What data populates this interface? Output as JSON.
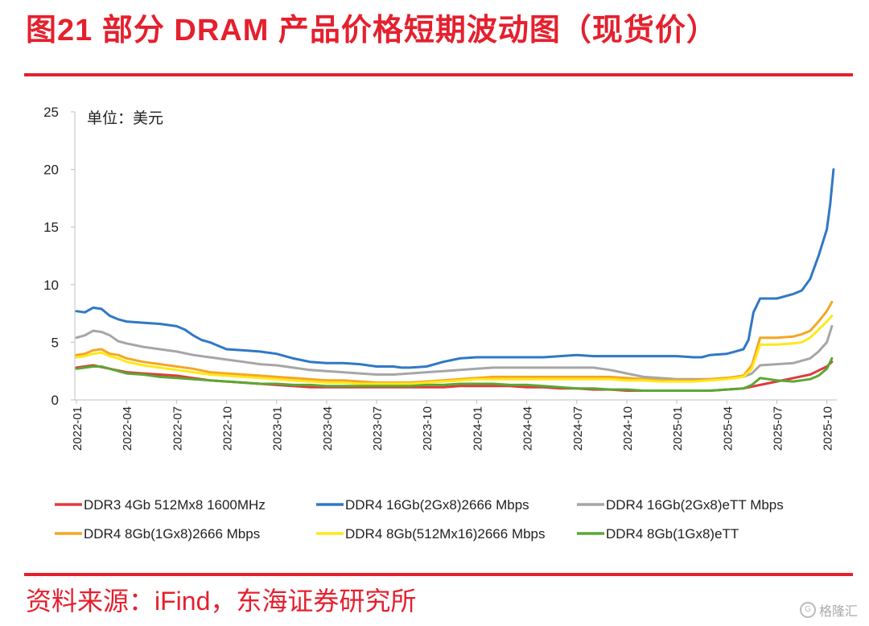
{
  "header": {
    "title": "图21  部分 DRAM 产品价格短期波动图（现货价）"
  },
  "footer": {
    "source": "资料来源：iFind，东海证券研究所",
    "watermark": "格隆汇"
  },
  "chart_data": {
    "type": "line",
    "unit_label": "单位：美元",
    "ylim": [
      0,
      25
    ],
    "yticks": [
      0,
      5,
      10,
      15,
      20,
      25
    ],
    "xlim": [
      0,
      45.5
    ],
    "xtick_labels": [
      "2022-01",
      "2022-04",
      "2022-07",
      "2022-10",
      "2023-01",
      "2023-04",
      "2023-07",
      "2023-10",
      "2024-01",
      "2024-04",
      "2024-07",
      "2024-10",
      "2025-01",
      "2025-04",
      "2025-07",
      "2025-10"
    ],
    "xtick_positions": [
      0,
      3,
      6,
      9,
      12,
      15,
      18,
      21,
      24,
      27,
      30,
      33,
      36,
      39,
      42,
      45
    ],
    "legend_position": "bottom",
    "series": [
      {
        "name": "DDR3 4Gb 512Mx8 1600MHz",
        "color": "#e03a3e",
        "x": [
          0,
          1,
          2,
          3,
          4,
          5,
          6,
          7,
          8,
          9,
          10,
          11,
          12,
          13,
          14,
          15,
          16,
          17,
          18,
          19,
          20,
          21,
          22,
          23,
          24,
          25,
          26,
          27,
          28,
          29,
          30,
          31,
          32,
          33,
          34,
          35,
          36,
          37,
          38,
          39,
          40,
          41,
          42,
          43,
          44,
          45,
          45.3
        ],
        "y": [
          2.8,
          3.0,
          2.7,
          2.4,
          2.3,
          2.2,
          2.1,
          1.9,
          1.7,
          1.6,
          1.5,
          1.4,
          1.3,
          1.2,
          1.1,
          1.1,
          1.1,
          1.1,
          1.1,
          1.1,
          1.1,
          1.1,
          1.1,
          1.2,
          1.2,
          1.2,
          1.2,
          1.1,
          1.1,
          1.0,
          1.0,
          0.9,
          0.9,
          0.8,
          0.8,
          0.8,
          0.8,
          0.8,
          0.8,
          0.9,
          1.0,
          1.3,
          1.6,
          1.9,
          2.2,
          2.9,
          3.3
        ]
      },
      {
        "name": "DDR4 16Gb(2Gx8)2666 Mbps",
        "color": "#2f78c6",
        "x": [
          0,
          0.5,
          1,
          1.5,
          2,
          2.5,
          3,
          4,
          5,
          6,
          6.5,
          7,
          7.5,
          8,
          8.5,
          9,
          10,
          11,
          12,
          13,
          14,
          15,
          16,
          17,
          18,
          19,
          19.5,
          20,
          21,
          22,
          23,
          24,
          25,
          26,
          27,
          28,
          29,
          30,
          31,
          32,
          33,
          34,
          35,
          36,
          37,
          37.5,
          38,
          39,
          39.5,
          40,
          40.3,
          40.6,
          41,
          42,
          43,
          43.5,
          44,
          44.5,
          45,
          45.2,
          45.4
        ],
        "y": [
          7.7,
          7.6,
          8.0,
          7.9,
          7.3,
          7.0,
          6.8,
          6.7,
          6.6,
          6.4,
          6.1,
          5.6,
          5.2,
          5.0,
          4.7,
          4.4,
          4.3,
          4.2,
          4.0,
          3.6,
          3.3,
          3.2,
          3.2,
          3.1,
          2.9,
          2.9,
          2.8,
          2.8,
          2.9,
          3.3,
          3.6,
          3.7,
          3.7,
          3.7,
          3.7,
          3.7,
          3.8,
          3.9,
          3.8,
          3.8,
          3.8,
          3.8,
          3.8,
          3.8,
          3.7,
          3.7,
          3.9,
          4.0,
          4.2,
          4.4,
          5.2,
          7.6,
          8.8,
          8.8,
          9.2,
          9.5,
          10.5,
          12.5,
          14.8,
          17.0,
          20.0
        ]
      },
      {
        "name": "DDR4 16Gb(2Gx8)eTT Mbps",
        "color": "#a6a6a6",
        "x": [
          0,
          0.5,
          1,
          1.5,
          2,
          2.5,
          3,
          4,
          5,
          6,
          7,
          8,
          9,
          10,
          11,
          12,
          13,
          14,
          15,
          16,
          17,
          18,
          19,
          20,
          21,
          22,
          23,
          24,
          25,
          26,
          27,
          28,
          29,
          30,
          31,
          32,
          33,
          34,
          35,
          36,
          37,
          38,
          39,
          40,
          40.5,
          41,
          42,
          43,
          43.5,
          44,
          44.5,
          45,
          45.3
        ],
        "y": [
          5.4,
          5.6,
          6.0,
          5.9,
          5.6,
          5.1,
          4.9,
          4.6,
          4.4,
          4.2,
          3.9,
          3.7,
          3.5,
          3.3,
          3.1,
          3.0,
          2.8,
          2.6,
          2.5,
          2.4,
          2.3,
          2.2,
          2.2,
          2.3,
          2.4,
          2.5,
          2.6,
          2.7,
          2.8,
          2.8,
          2.8,
          2.8,
          2.8,
          2.8,
          2.8,
          2.6,
          2.3,
          2.0,
          1.9,
          1.8,
          1.8,
          1.8,
          1.9,
          2.0,
          2.3,
          3.0,
          3.1,
          3.2,
          3.4,
          3.6,
          4.2,
          5.0,
          6.4
        ]
      },
      {
        "name": "DDR4 8Gb(1Gx8)2666 Mbps",
        "color": "#f5a623",
        "x": [
          0,
          0.5,
          1,
          1.5,
          2,
          2.5,
          3,
          4,
          5,
          6,
          7,
          8,
          9,
          10,
          11,
          12,
          13,
          14,
          15,
          16,
          17,
          18,
          19,
          20,
          21,
          22,
          23,
          24,
          25,
          26,
          27,
          28,
          29,
          30,
          31,
          32,
          33,
          34,
          35,
          36,
          37,
          38,
          39,
          40,
          40.5,
          41,
          42,
          43,
          43.5,
          44,
          44.5,
          45,
          45.3
        ],
        "y": [
          3.9,
          4.0,
          4.3,
          4.4,
          4.0,
          3.9,
          3.6,
          3.3,
          3.1,
          2.9,
          2.7,
          2.4,
          2.3,
          2.2,
          2.1,
          2.0,
          1.9,
          1.8,
          1.7,
          1.7,
          1.6,
          1.5,
          1.5,
          1.5,
          1.6,
          1.7,
          1.8,
          1.9,
          2.0,
          2.0,
          2.0,
          2.0,
          2.0,
          2.0,
          2.0,
          2.0,
          1.9,
          1.8,
          1.7,
          1.7,
          1.7,
          1.8,
          1.9,
          2.1,
          3.0,
          5.4,
          5.4,
          5.5,
          5.7,
          6.0,
          6.8,
          7.7,
          8.5
        ]
      },
      {
        "name": "DDR4 8Gb(512Mx16)2666 Mbps",
        "color": "#ffe81a",
        "x": [
          0,
          0.5,
          1,
          1.5,
          2,
          2.5,
          3,
          4,
          5,
          6,
          7,
          8,
          9,
          10,
          11,
          12,
          13,
          14,
          15,
          16,
          17,
          18,
          19,
          20,
          21,
          22,
          23,
          24,
          25,
          26,
          27,
          28,
          29,
          30,
          31,
          32,
          33,
          34,
          35,
          36,
          37,
          38,
          39,
          40,
          40.5,
          41,
          42,
          43,
          43.5,
          44,
          44.5,
          45,
          45.3
        ],
        "y": [
          3.7,
          3.8,
          4.0,
          4.1,
          3.8,
          3.6,
          3.3,
          3.0,
          2.8,
          2.6,
          2.4,
          2.2,
          2.1,
          2.0,
          1.9,
          1.8,
          1.7,
          1.6,
          1.5,
          1.5,
          1.4,
          1.4,
          1.4,
          1.4,
          1.5,
          1.6,
          1.7,
          1.8,
          1.8,
          1.8,
          1.8,
          1.8,
          1.8,
          1.8,
          1.8,
          1.8,
          1.7,
          1.7,
          1.6,
          1.6,
          1.6,
          1.7,
          1.8,
          2.0,
          2.7,
          4.8,
          4.8,
          4.9,
          5.0,
          5.4,
          6.1,
          6.8,
          7.3
        ]
      },
      {
        "name": "DDR4 8Gb(1Gx8)eTT",
        "color": "#5aa832",
        "x": [
          0,
          0.5,
          1,
          1.5,
          2,
          2.5,
          3,
          4,
          5,
          6,
          7,
          8,
          9,
          10,
          11,
          12,
          13,
          14,
          15,
          16,
          17,
          18,
          19,
          20,
          21,
          22,
          23,
          24,
          25,
          26,
          27,
          28,
          29,
          30,
          31,
          32,
          33,
          34,
          35,
          36,
          37,
          38,
          39,
          40,
          40.5,
          41,
          42,
          43,
          43.5,
          44,
          44.5,
          45,
          45.3
        ],
        "y": [
          2.7,
          2.8,
          2.9,
          2.9,
          2.7,
          2.5,
          2.3,
          2.2,
          2.0,
          1.9,
          1.8,
          1.7,
          1.6,
          1.5,
          1.4,
          1.4,
          1.3,
          1.3,
          1.2,
          1.2,
          1.2,
          1.2,
          1.2,
          1.2,
          1.3,
          1.3,
          1.4,
          1.4,
          1.4,
          1.3,
          1.3,
          1.2,
          1.1,
          1.0,
          1.0,
          0.9,
          0.9,
          0.8,
          0.8,
          0.8,
          0.8,
          0.8,
          0.9,
          1.0,
          1.3,
          1.9,
          1.7,
          1.6,
          1.7,
          1.8,
          2.1,
          2.7,
          3.6
        ]
      }
    ]
  }
}
